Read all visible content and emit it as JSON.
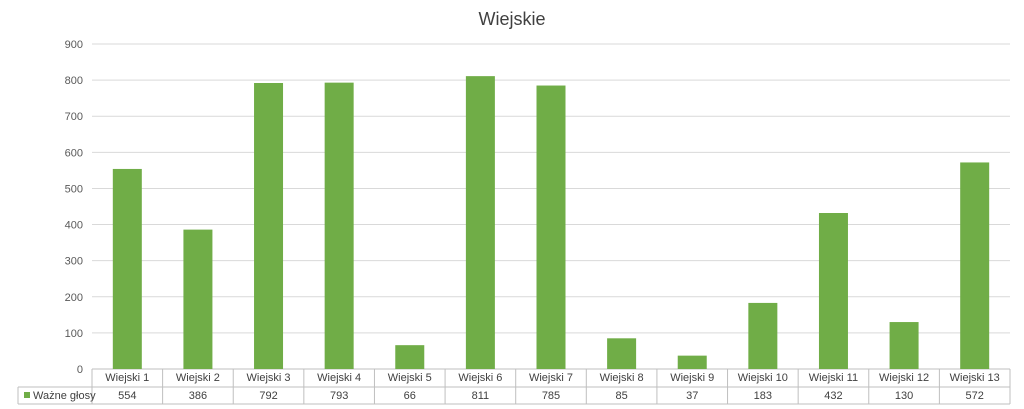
{
  "chart_data": {
    "type": "bar",
    "title": "Wiejskie",
    "categories": [
      "Wiejski 1",
      "Wiejski 2",
      "Wiejski 3",
      "Wiejski 4",
      "Wiejski 5",
      "Wiejski 6",
      "Wiejski 7",
      "Wiejski 8",
      "Wiejski 9",
      "Wiejski 10",
      "Wiejski 11",
      "Wiejski 12",
      "Wiejski 13"
    ],
    "series": [
      {
        "name": "Ważne głosy",
        "values": [
          554,
          386,
          792,
          793,
          66,
          811,
          785,
          85,
          37,
          183,
          432,
          130,
          572
        ],
        "color": "#70ad47"
      }
    ],
    "ylim": [
      0,
      900
    ],
    "yticks": [
      0,
      100,
      200,
      300,
      400,
      500,
      600,
      700,
      800,
      900
    ],
    "grid": true,
    "legend": "data-table-left"
  }
}
